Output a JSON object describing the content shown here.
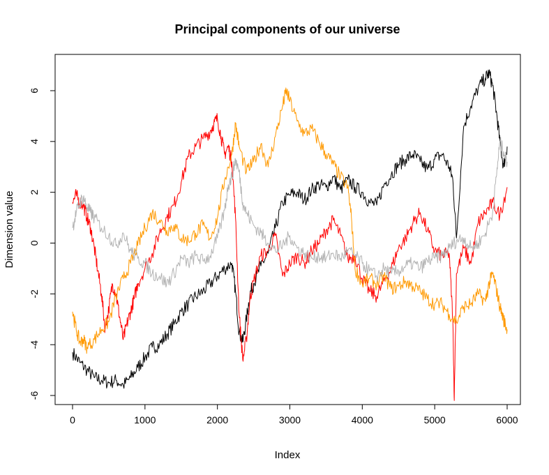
{
  "chart_data": {
    "type": "line",
    "title": "Principal components of our universe",
    "xlabel": "Index",
    "ylabel": "Dimension value",
    "xlim": [
      0,
      6000
    ],
    "ylim": [
      -6.3,
      6.9
    ],
    "x_ticks": [
      0,
      1000,
      2000,
      3000,
      4000,
      5000,
      6000
    ],
    "x_tick_labels": [
      "0",
      "1000",
      "2000",
      "3000",
      "4000",
      "5000",
      "6000"
    ],
    "y_ticks": [
      -6,
      -4,
      -2,
      0,
      2,
      4,
      6
    ],
    "y_tick_labels": [
      "-6",
      "-4",
      "-2",
      "0",
      "2",
      "4",
      "6"
    ],
    "grid": false,
    "legend": "none",
    "series": [
      {
        "color": "#000000",
        "x": [
          0,
          100,
          200,
          300,
          400,
          500,
          600,
          700,
          800,
          900,
          1000,
          1100,
          1200,
          1300,
          1400,
          1500,
          1600,
          1700,
          1800,
          1900,
          2000,
          2100,
          2200,
          2250,
          2300,
          2350,
          2400,
          2450,
          2500,
          2600,
          2700,
          2800,
          2900,
          3000,
          3100,
          3200,
          3300,
          3400,
          3500,
          3600,
          3700,
          3800,
          3900,
          4000,
          4100,
          4200,
          4300,
          4400,
          4500,
          4600,
          4700,
          4800,
          4900,
          5000,
          5100,
          5200,
          5250,
          5300,
          5400,
          5500,
          5600,
          5700,
          5750,
          5800,
          5850,
          5900,
          5950,
          6000
        ],
        "y": [
          -4.3,
          -4.7,
          -5.0,
          -5.3,
          -5.4,
          -5.5,
          -5.4,
          -5.6,
          -5.3,
          -4.9,
          -4.5,
          -4.1,
          -4.0,
          -3.6,
          -3.2,
          -2.7,
          -2.4,
          -2.1,
          -1.9,
          -1.6,
          -1.3,
          -1.0,
          -0.8,
          -1.9,
          -3.5,
          -3.9,
          -3.0,
          -2.0,
          -1.6,
          -0.9,
          -0.4,
          0.6,
          1.6,
          1.9,
          2.0,
          1.7,
          2.1,
          2.3,
          2.2,
          2.6,
          2.1,
          2.5,
          2.2,
          2.0,
          1.6,
          1.5,
          2.3,
          2.7,
          3.1,
          3.3,
          3.5,
          3.2,
          2.9,
          3.3,
          3.5,
          3.0,
          2.5,
          0.2,
          4.6,
          5.4,
          6.1,
          6.5,
          6.7,
          6.2,
          5.2,
          4.0,
          3.0,
          3.8
        ]
      },
      {
        "color": "#FF0000",
        "x": [
          0,
          50,
          100,
          150,
          200,
          250,
          300,
          350,
          400,
          450,
          500,
          550,
          600,
          650,
          700,
          750,
          800,
          850,
          900,
          1000,
          1100,
          1200,
          1300,
          1400,
          1500,
          1600,
          1700,
          1800,
          1900,
          1950,
          2000,
          2050,
          2100,
          2150,
          2200,
          2250,
          2300,
          2350,
          2400,
          2450,
          2500,
          2600,
          2700,
          2800,
          2900,
          3000,
          3100,
          3200,
          3300,
          3400,
          3500,
          3600,
          3700,
          3800,
          3900,
          4000,
          4100,
          4200,
          4300,
          4400,
          4500,
          4600,
          4700,
          4800,
          4900,
          5000,
          5100,
          5200,
          5250,
          5270,
          5300,
          5400,
          5500,
          5600,
          5700,
          5800,
          5900,
          6000
        ],
        "y": [
          1.6,
          1.9,
          1.6,
          1.5,
          1.0,
          0.6,
          -0.2,
          -1.1,
          -2.0,
          -3.4,
          -2.6,
          -1.6,
          -2.0,
          -2.9,
          -3.8,
          -3.2,
          -2.7,
          -2.2,
          -1.6,
          -1.0,
          -0.4,
          0.4,
          1.0,
          1.5,
          2.4,
          3.4,
          3.8,
          4.1,
          4.4,
          4.7,
          4.9,
          4.2,
          3.5,
          3.8,
          3.2,
          1.0,
          -2.8,
          -4.6,
          -3.8,
          -2.2,
          -1.5,
          -0.5,
          -0.3,
          0.3,
          -1.3,
          -0.8,
          -0.5,
          -0.8,
          -0.3,
          0.0,
          0.5,
          0.9,
          0.3,
          -0.6,
          -0.5,
          -1.4,
          -1.9,
          -2.1,
          -1.5,
          -1.0,
          -0.2,
          0.2,
          0.8,
          1.2,
          0.5,
          -0.3,
          -0.5,
          -0.4,
          -3.0,
          -6.2,
          -1.2,
          -0.2,
          -0.8,
          0.8,
          1.2,
          1.6,
          1.1,
          2.2
        ]
      },
      {
        "color": "#FF9900",
        "x": [
          0,
          50,
          100,
          150,
          200,
          300,
          400,
          500,
          600,
          700,
          800,
          900,
          1000,
          1100,
          1200,
          1300,
          1400,
          1500,
          1600,
          1700,
          1800,
          1900,
          2000,
          2100,
          2200,
          2250,
          2300,
          2400,
          2500,
          2600,
          2700,
          2800,
          2900,
          2950,
          3000,
          3100,
          3200,
          3300,
          3400,
          3500,
          3600,
          3700,
          3800,
          3850,
          3900,
          4000,
          4100,
          4200,
          4300,
          4400,
          4500,
          4600,
          4700,
          4800,
          4900,
          5000,
          5100,
          5200,
          5300,
          5400,
          5500,
          5600,
          5700,
          5750,
          5800,
          5850,
          5900,
          5950,
          6000
        ],
        "y": [
          -2.7,
          -3.4,
          -3.9,
          -3.8,
          -4.1,
          -3.8,
          -3.4,
          -3.1,
          -2.1,
          -1.4,
          -0.8,
          -0.1,
          0.6,
          1.2,
          0.9,
          0.5,
          0.7,
          0.2,
          0.1,
          0.4,
          0.7,
          0.2,
          1.0,
          2.5,
          3.5,
          4.7,
          3.8,
          2.8,
          3.2,
          3.9,
          3.0,
          4.2,
          5.4,
          6.0,
          5.6,
          4.8,
          4.3,
          4.5,
          4.0,
          3.5,
          3.1,
          2.6,
          2.2,
          1.0,
          -1.0,
          -1.6,
          -1.4,
          -1.6,
          -1.3,
          -1.8,
          -1.7,
          -1.5,
          -1.7,
          -1.9,
          -2.2,
          -2.4,
          -2.4,
          -2.8,
          -3.1,
          -2.5,
          -2.4,
          -2.0,
          -2.3,
          -1.6,
          -1.2,
          -1.8,
          -2.5,
          -3.0,
          -3.4
        ]
      },
      {
        "color": "#B3B3B3",
        "x": [
          0,
          50,
          100,
          150,
          200,
          250,
          300,
          400,
          500,
          600,
          700,
          800,
          900,
          1000,
          1100,
          1200,
          1300,
          1400,
          1500,
          1600,
          1700,
          1800,
          1900,
          2000,
          2100,
          2150,
          2200,
          2250,
          2300,
          2350,
          2400,
          2500,
          2600,
          2700,
          2800,
          2900,
          3000,
          3100,
          3200,
          3300,
          3400,
          3500,
          3600,
          3700,
          3800,
          3900,
          4000,
          4100,
          4200,
          4300,
          4400,
          4500,
          4600,
          4700,
          4800,
          4900,
          5000,
          5100,
          5200,
          5300,
          5400,
          5500,
          5600,
          5700,
          5800,
          5850,
          5900,
          5950,
          6000
        ],
        "y": [
          0.6,
          1.2,
          1.6,
          1.8,
          1.4,
          1.2,
          1.0,
          0.6,
          0.3,
          -0.1,
          0.4,
          -0.3,
          -0.6,
          -0.8,
          -1.2,
          -1.3,
          -1.6,
          -1.2,
          -0.6,
          -0.8,
          -0.5,
          -0.7,
          -0.5,
          0.2,
          1.3,
          2.3,
          2.6,
          3.3,
          2.8,
          1.6,
          1.2,
          0.7,
          0.4,
          0.0,
          -0.3,
          -0.1,
          0.3,
          -0.2,
          -0.4,
          -0.6,
          -0.5,
          -0.6,
          -0.4,
          -0.6,
          -0.3,
          -0.5,
          -0.8,
          -1.1,
          -1.3,
          -1.0,
          -1.2,
          -1.1,
          -0.9,
          -0.8,
          -1.0,
          -0.7,
          -0.6,
          -0.5,
          -0.2,
          0.1,
          0.2,
          -0.2,
          0.0,
          0.4,
          1.2,
          2.6,
          4.0,
          3.6,
          3.2
        ]
      }
    ]
  }
}
